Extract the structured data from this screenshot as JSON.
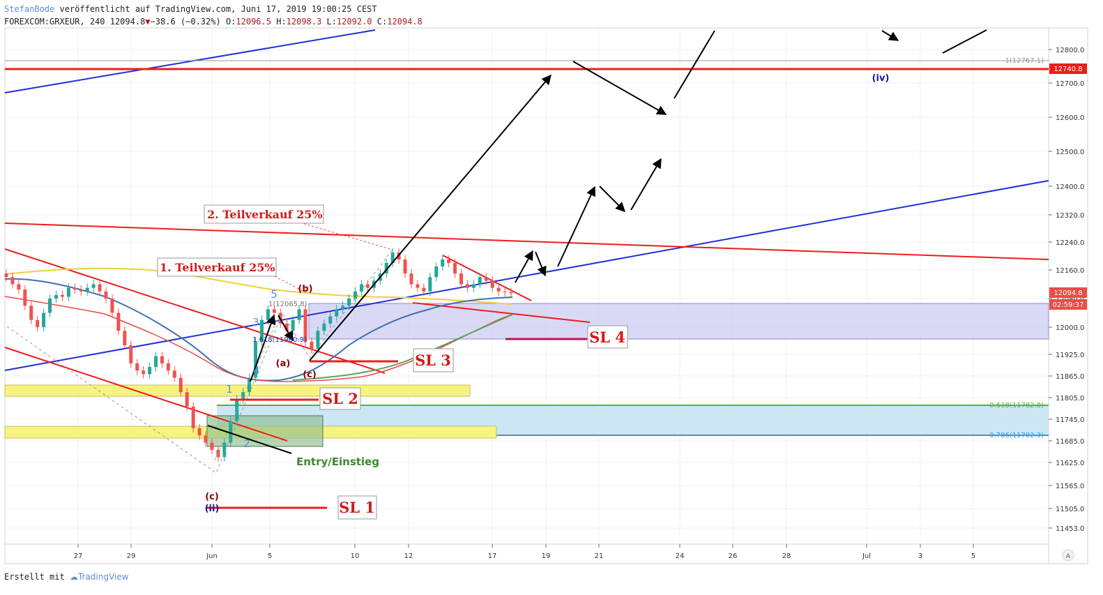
{
  "header": {
    "author": "StefanBode",
    "published": " veröffentlicht auf TradingView.com, Juni 17, 2019 19:00:25 CEST",
    "symbol": "FOREXCOM:GRXEUR, 240",
    "last": "12094.8",
    "change": "−38.6 (−0.32%)",
    "o_label": "O:",
    "o_value": "12096.5",
    "h_label": "H:",
    "h_value": "12098.3",
    "l_label": "L:",
    "l_value": "12092.0",
    "c_label": "C:",
    "c_value": "12094.8"
  },
  "footer": {
    "created_with": "Erstellt mit",
    "brand": "TradingView"
  },
  "colors": {
    "up": "#26a69a",
    "down": "#ef5350",
    "red_line": "#ee1c1c",
    "blue_line": "#1f2fd6",
    "annot_red": "#d11a1a",
    "wave_blue": "#5b8fd6"
  },
  "chart_data": {
    "type": "candlestick",
    "y_axis": {
      "ticks": [
        "12800.0",
        "12700.0",
        "12600.0",
        "12500.0",
        "12400.0",
        "12320.0",
        "12240.0",
        "12160.0",
        "12080.0",
        "12000.0",
        "11925.0",
        "11865.0",
        "11805.0",
        "11745.0",
        "11685.0",
        "11625.0",
        "11565.0",
        "11505.0",
        "11453.0"
      ],
      "ylim": [
        11420,
        12880
      ],
      "price_badge": "12094.8",
      "countdown_badge": "02:59:37",
      "level_badge": "12740.8"
    },
    "x_axis": {
      "ticks": [
        "27",
        "29",
        "Jun",
        "5",
        "10",
        "12",
        "17",
        "19",
        "21",
        "24",
        "26",
        "28",
        "Jul",
        "3",
        "5"
      ]
    },
    "candles_close": [
      12140,
      12120,
      12105,
      12060,
      12020,
      12000,
      12040,
      12080,
      12090,
      12085,
      12110,
      12105,
      12100,
      12110,
      12120,
      12100,
      12080,
      12040,
      11990,
      11950,
      11900,
      11880,
      11870,
      11890,
      11920,
      11900,
      11880,
      11860,
      11820,
      11780,
      11720,
      11700,
      11680,
      11660,
      11640,
      11680,
      11740,
      11800,
      11820,
      11860,
      11960,
      12020,
      12050,
      12040,
      12010,
      11990,
      12020,
      12050,
      11960,
      11940,
      11990,
      12010,
      12030,
      12050,
      12060,
      12080,
      12100,
      12120,
      12110,
      12130,
      12150,
      12180,
      12210,
      12190,
      12150,
      12120,
      12110,
      12100,
      12140,
      12170,
      12190,
      12180,
      12150,
      12120,
      12110,
      12120,
      12140,
      12130,
      12110,
      12100,
      12098,
      12094.8
    ],
    "fib_labels": {
      "top": "1(12767.1)",
      "fib_0618": "0.618(11782.8)",
      "fib_0786": "0.786(11702.3)",
      "fib_1_small": "1(12065.8)",
      "fib_1618": "1.618(11960.9)"
    },
    "annotations": {
      "sell1": "1. Teilverkauf  25%",
      "sell2": "2. Teilverkauf  25%",
      "sl1": "SL 1",
      "sl2": "SL 2",
      "sl3": "SL 3",
      "sl4": "SL 4",
      "entry": "Entry/Einstieg",
      "wave_iv": "(iv)",
      "wave_ii": "(ii)",
      "wave_c_low": "(c)",
      "wave_a": "(a)",
      "wave_b": "(b)",
      "wave_c_mid": "(c)",
      "w1": "1",
      "w2": "2",
      "w3": "3",
      "w4": "4",
      "w5": "5"
    },
    "top_right_badge": "A"
  }
}
